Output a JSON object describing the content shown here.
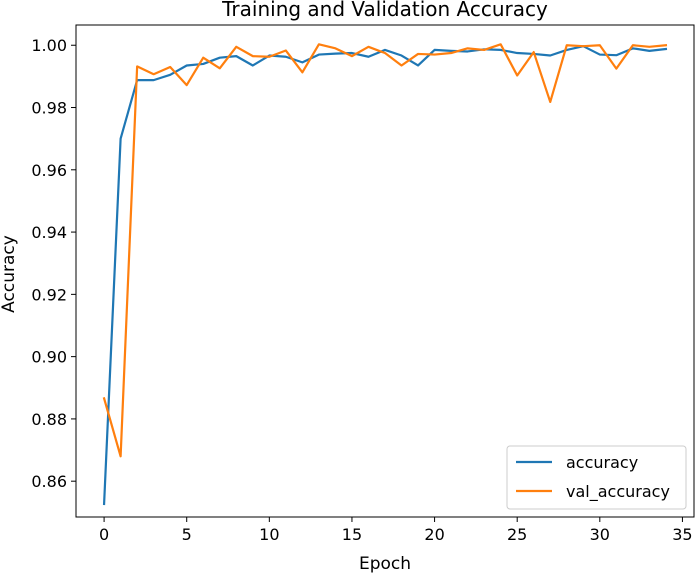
{
  "chart_data": {
    "type": "line",
    "title": "Training and Validation Accuracy",
    "xlabel": "Epoch",
    "ylabel": "Accuracy",
    "xlim": [
      -1.7,
      35.7
    ],
    "ylim": [
      0.8485,
      1.0065
    ],
    "x": [
      0,
      1,
      2,
      3,
      4,
      5,
      6,
      7,
      8,
      9,
      10,
      11,
      12,
      13,
      14,
      15,
      16,
      17,
      18,
      19,
      20,
      21,
      22,
      23,
      24,
      25,
      26,
      27,
      28,
      29,
      30,
      31,
      32,
      33,
      34
    ],
    "x_ticks": [
      0,
      5,
      10,
      15,
      20,
      25,
      30,
      35
    ],
    "x_tick_labels": [
      "0",
      "5",
      "10",
      "15",
      "20",
      "25",
      "30",
      "35"
    ],
    "y_ticks": [
      0.86,
      0.88,
      0.9,
      0.92,
      0.94,
      0.96,
      0.98,
      1.0
    ],
    "y_tick_labels": [
      "0.86",
      "0.88",
      "0.90",
      "0.92",
      "0.94",
      "0.96",
      "0.98",
      "1.00"
    ],
    "grid": false,
    "legend_position": "bottom-right",
    "series": [
      {
        "name": "accuracy",
        "color": "#1f77b4",
        "values": [
          0.8527,
          0.97,
          0.9888,
          0.9888,
          0.9905,
          0.9935,
          0.994,
          0.996,
          0.9965,
          0.9935,
          0.9967,
          0.9963,
          0.9945,
          0.997,
          0.9973,
          0.9975,
          0.9963,
          0.9985,
          0.9967,
          0.9935,
          0.9985,
          0.9982,
          0.998,
          0.9987,
          0.9985,
          0.9975,
          0.9972,
          0.9967,
          0.9985,
          0.9997,
          0.997,
          0.9968,
          0.999,
          0.9982,
          0.9988
        ]
      },
      {
        "name": "val_accuracy",
        "color": "#ff7f0e",
        "values": [
          0.8866,
          0.868,
          0.9932,
          0.9907,
          0.993,
          0.9872,
          0.996,
          0.9926,
          0.9995,
          0.9965,
          0.9963,
          0.9983,
          0.9913,
          1.0003,
          0.999,
          0.9965,
          0.9995,
          0.9975,
          0.9935,
          0.9972,
          0.997,
          0.9975,
          0.999,
          0.9985,
          1.0003,
          0.9903,
          0.9978,
          0.9818,
          1.0,
          0.9997,
          1.0,
          0.9925,
          1.0,
          0.9995,
          1.0
        ]
      }
    ]
  }
}
